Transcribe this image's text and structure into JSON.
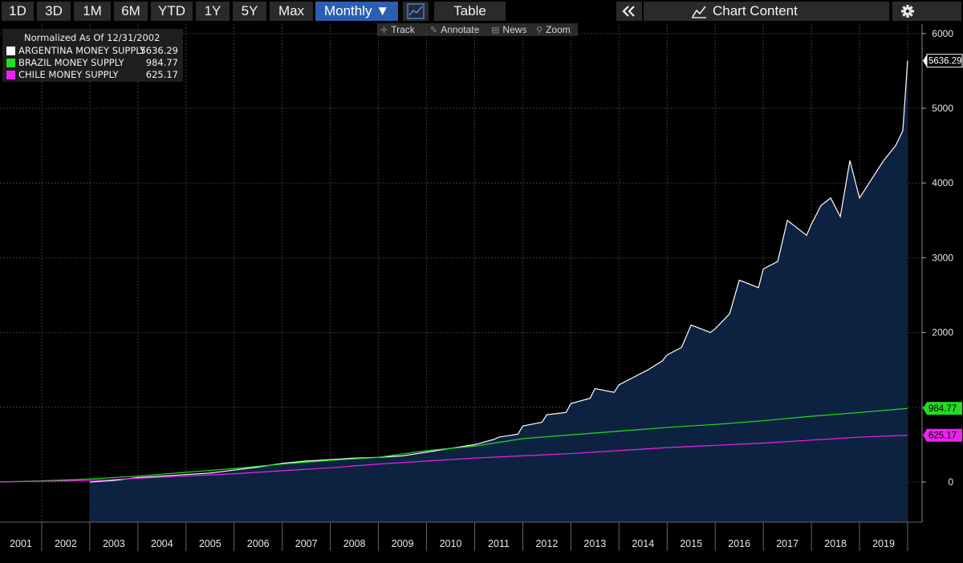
{
  "toolbar": {
    "periods": [
      "1D",
      "3D",
      "1M",
      "6M",
      "YTD",
      "1Y",
      "5Y",
      "Max"
    ],
    "frequency": "Monthly ▼",
    "table_label": "Table",
    "collapse_icon": "double-chevron-left",
    "chart_content_label": "Chart Content",
    "settings_icon": "gear"
  },
  "subtoolbar": {
    "track": "Track",
    "annotate": "Annotate",
    "news": "News",
    "zoom": "Zoom"
  },
  "legend": {
    "title": "Normalized As Of 12/31/2002",
    "series": [
      {
        "name": "ARGENTINA MONEY SUPPLY",
        "value": "5636.29",
        "color": "#ffffff"
      },
      {
        "name": "BRAZIL MONEY SUPPLY",
        "value": "984.77",
        "color": "#22dd22"
      },
      {
        "name": "CHILE MONEY SUPPLY",
        "value": "625.17",
        "color": "#ee22ee"
      }
    ]
  },
  "chart_data": {
    "type": "line",
    "title": "Normalized As Of 12/31/2002",
    "xlabel": "",
    "ylabel": "",
    "x_range": [
      2001.0,
      2020.0
    ],
    "ylim": [
      -500,
      6200
    ],
    "y_ticks": [
      "0",
      "1000",
      "2000",
      "3000",
      "4000",
      "5000",
      "6000"
    ],
    "x_ticks": [
      "2001",
      "2002",
      "2003",
      "2004",
      "2005",
      "2006",
      "2007",
      "2008",
      "2009",
      "2010",
      "2011",
      "2012",
      "2013",
      "2014",
      "2015",
      "2016",
      "2017",
      "2018",
      "2019"
    ],
    "series": [
      {
        "name": "ARGENTINA MONEY SUPPLY",
        "color": "#ffffff",
        "last_value": "5636.29",
        "x": [
          2003.0,
          2003.5,
          2004.0,
          2004.5,
          2005.0,
          2005.5,
          2006.0,
          2006.5,
          2007.0,
          2007.5,
          2008.0,
          2008.5,
          2009.0,
          2009.5,
          2010.0,
          2010.5,
          2011.0,
          2011.4,
          2011.5,
          2011.9,
          2012.0,
          2012.4,
          2012.5,
          2012.9,
          2013.0,
          2013.4,
          2013.5,
          2013.9,
          2014.0,
          2014.3,
          2014.6,
          2014.9,
          2015.0,
          2015.3,
          2015.5,
          2015.9,
          2016.0,
          2016.3,
          2016.5,
          2016.9,
          2017.0,
          2017.3,
          2017.5,
          2017.9,
          2018.0,
          2018.2,
          2018.4,
          2018.6,
          2018.8,
          2019.0,
          2019.2,
          2019.5,
          2019.75,
          2019.9,
          2020.0
        ],
        "values": [
          0,
          20,
          60,
          80,
          100,
          120,
          160,
          200,
          250,
          280,
          300,
          320,
          330,
          350,
          400,
          450,
          500,
          570,
          600,
          640,
          750,
          800,
          900,
          930,
          1050,
          1120,
          1250,
          1200,
          1300,
          1400,
          1500,
          1620,
          1700,
          1800,
          2100,
          2000,
          2050,
          2250,
          2700,
          2600,
          2850,
          2950,
          3500,
          3300,
          3450,
          3700,
          3800,
          3550,
          4300,
          3800,
          4000,
          4300,
          4500,
          4700,
          5636.29
        ]
      },
      {
        "name": "BRAZIL MONEY SUPPLY",
        "color": "#22dd22",
        "last_value": "984.77",
        "x": [
          2001.0,
          2002.0,
          2003.0,
          2004.0,
          2005.0,
          2006.0,
          2007.0,
          2008.0,
          2009.0,
          2010.0,
          2011.0,
          2012.0,
          2013.0,
          2014.0,
          2015.0,
          2016.0,
          2017.0,
          2018.0,
          2019.0,
          2020.0
        ],
        "values": [
          0,
          15,
          40,
          80,
          130,
          180,
          240,
          290,
          330,
          420,
          480,
          580,
          630,
          680,
          730,
          770,
          820,
          880,
          930,
          984.77
        ]
      },
      {
        "name": "CHILE MONEY SUPPLY",
        "color": "#ee22ee",
        "last_value": "625.17",
        "x": [
          2001.0,
          2002.0,
          2003.0,
          2004.0,
          2005.0,
          2006.0,
          2007.0,
          2008.0,
          2009.0,
          2010.0,
          2011.0,
          2012.0,
          2013.0,
          2014.0,
          2015.0,
          2016.0,
          2017.0,
          2018.0,
          2019.0,
          2020.0
        ],
        "values": [
          0,
          10,
          20,
          50,
          80,
          110,
          150,
          190,
          240,
          280,
          320,
          350,
          380,
          420,
          460,
          490,
          520,
          560,
          600,
          625.17
        ]
      }
    ]
  }
}
